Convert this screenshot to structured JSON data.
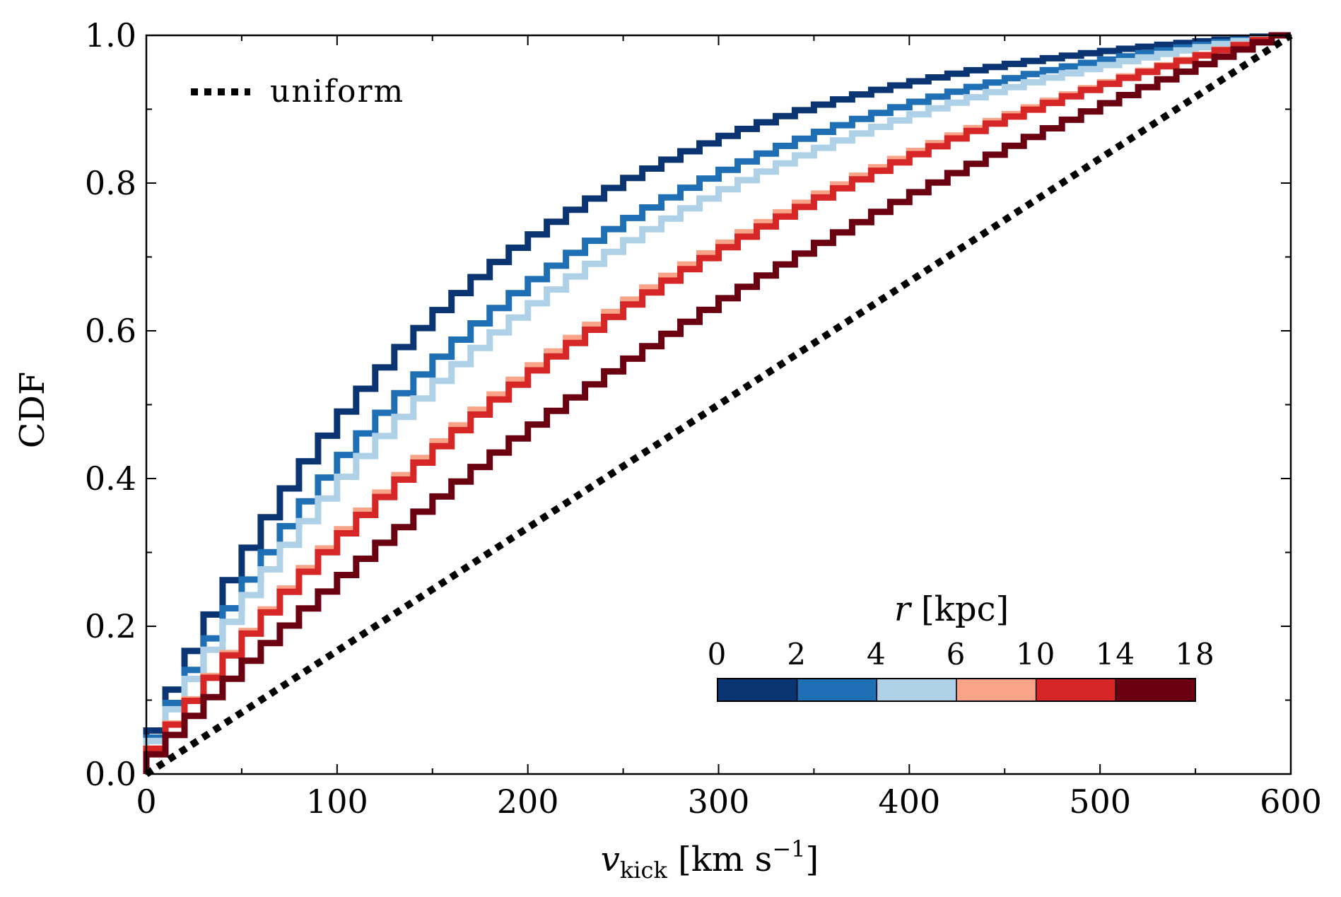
{
  "chart_data": {
    "type": "line",
    "style": "step",
    "xlabel": {
      "symbol": "v",
      "subscript": "kick",
      "units": " [km s",
      "superscript": "−1",
      "close": "]"
    },
    "ylabel": "CDF",
    "xlim": [
      0,
      600
    ],
    "ylim": [
      0,
      1
    ],
    "xticks": [
      0,
      100,
      200,
      300,
      400,
      500,
      600
    ],
    "yticks": [
      0,
      0.2,
      0.4,
      0.6,
      0.8,
      1.0
    ],
    "xtick_labels": [
      "0",
      "100",
      "200",
      "300",
      "400",
      "500",
      "600"
    ],
    "ytick_labels": [
      "0.0",
      "0.2",
      "0.4",
      "0.6",
      "0.8",
      "1.0"
    ],
    "grid": false,
    "bin_width": 10,
    "series": [
      {
        "name": "r 0–2 kpc",
        "color": "#0b3572",
        "rate": 0.00588
      },
      {
        "name": "r 2–4 kpc",
        "color": "#1f6fb4",
        "rate": 0.00475
      },
      {
        "name": "r 4–6 kpc",
        "color": "#aed1e8",
        "rate": 0.0042
      },
      {
        "name": "r 6–10 kpc",
        "color": "#f9a388",
        "rate": 0.0029
      },
      {
        "name": "r 10–14 kpc",
        "color": "#d62626",
        "rate": 0.0028
      },
      {
        "name": "r 14–18 kpc",
        "color": "#6b0011",
        "rate": 0.00175
      }
    ],
    "reference": {
      "name": "uniform",
      "style": "dotted",
      "color": "#000000",
      "x": [
        0,
        600
      ],
      "y": [
        0,
        1
      ]
    },
    "legend": {
      "position": "top-left",
      "label": "uniform"
    },
    "colorbar": {
      "title_symbol": "r",
      "title_units": " [kpc]",
      "bounds": [
        "0",
        "2",
        "4",
        "6",
        "10",
        "14",
        "18"
      ],
      "colors": [
        "#0b3572",
        "#1f6fb4",
        "#aed1e8",
        "#f9a388",
        "#d62626",
        "#6b0011"
      ],
      "position": "bottom-right"
    }
  }
}
